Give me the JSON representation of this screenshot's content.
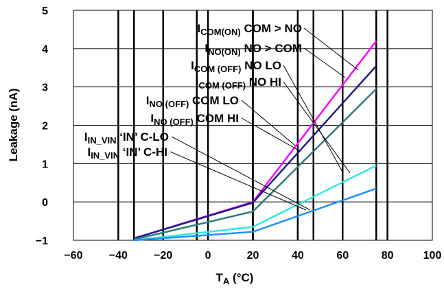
{
  "chart_data": {
    "type": "line",
    "xlabel": "T",
    "xlabel_sub": "A",
    "xlabel_unit": " (°C)",
    "ylabel": "Leakage (nA)",
    "xlim": [
      -60,
      100
    ],
    "ylim": [
      -1,
      5
    ],
    "xticks": [
      "−60",
      "−40",
      "−20",
      "0",
      "20",
      "40",
      "60",
      "80",
      "100"
    ],
    "yticks": [
      "−1",
      "0",
      "1",
      "2",
      "3",
      "4",
      "5"
    ],
    "grid": "vertical at 20°C steps plus horizontal",
    "series": [
      {
        "name": "ICOM(ON) COM > NO",
        "color": "#ff00ff",
        "x": [
          -33,
          20,
          75
        ],
        "y": [
          -0.95,
          0.0,
          4.2
        ]
      },
      {
        "name": "INO(ON) NO > COM",
        "color": "#1c1c8a",
        "x": [
          -33,
          20,
          75
        ],
        "y": [
          -0.95,
          -0.02,
          3.55
        ]
      },
      {
        "name": "ICOM (OFF) NO LO",
        "color": "#2e7d7d",
        "x": [
          -33,
          20,
          75
        ],
        "y": [
          -0.98,
          -0.25,
          2.95
        ]
      },
      {
        "name": "ICOM (OFF) NO HI",
        "color": "#33e6e6",
        "x": [
          -33,
          20,
          75
        ],
        "y": [
          -1.0,
          -0.65,
          0.95
        ]
      },
      {
        "name": "INO (OFF) COM LO",
        "color": "#1e90ff",
        "x": [
          -33,
          20,
          75
        ],
        "y": [
          -1.0,
          -0.78,
          0.35
        ]
      }
    ],
    "annotations": [
      {
        "main": "I",
        "sub": "COM(ON)",
        "rest": " COM > NO"
      },
      {
        "main": "I",
        "sub": "NO(ON)",
        "rest": " NO > COM"
      },
      {
        "main": "I",
        "sub": "COM (OFF)",
        "rest": " NO LO"
      },
      {
        "main": "I",
        "sub": "COM (OFF)",
        "rest": " NO HI"
      },
      {
        "main": "I",
        "sub": "NO (OFF)",
        "rest": " COM LO"
      },
      {
        "main": "I",
        "sub": "NO (OFF)",
        "rest": " COM HI"
      },
      {
        "main": "I",
        "sub": "IN_VIN",
        "rest": " ‘IN’ C-LO"
      },
      {
        "main": "I",
        "sub": "IN_VIN",
        "rest": " ‘IN’ C-HI"
      }
    ]
  }
}
